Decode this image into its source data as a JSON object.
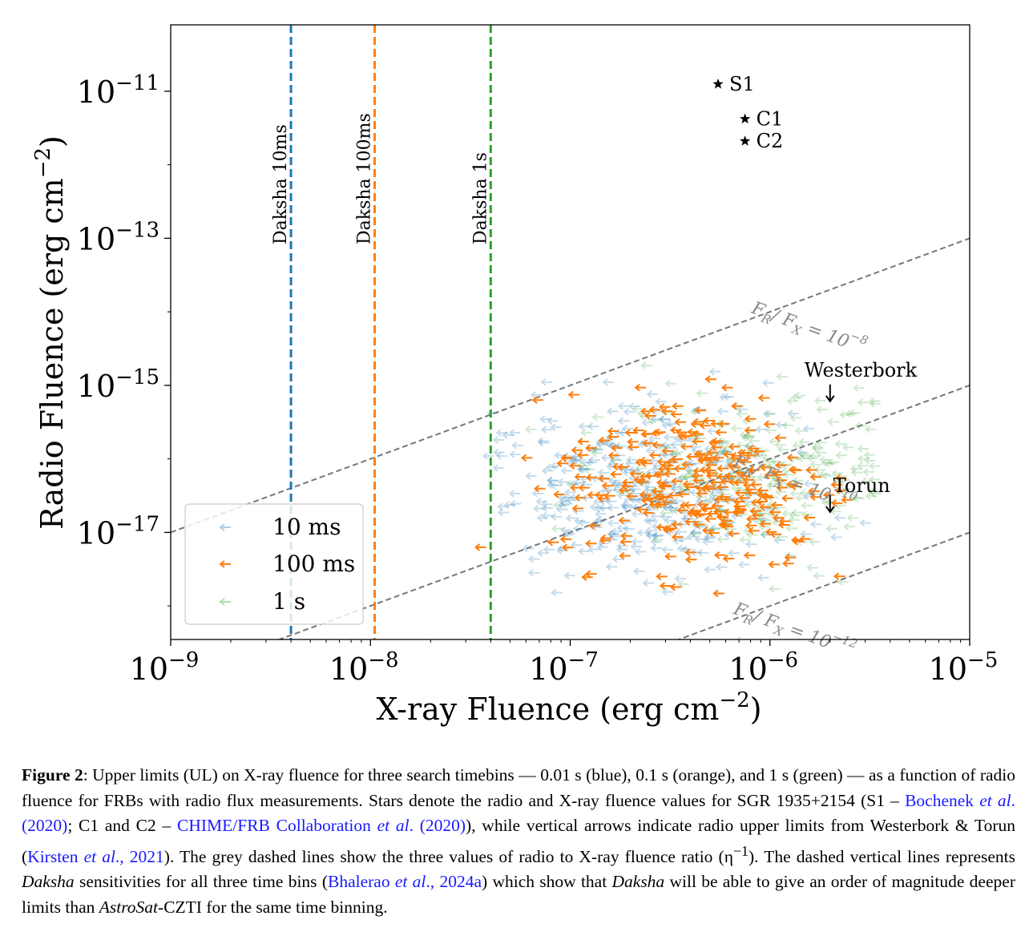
{
  "chart_data": {
    "type": "scatter",
    "xscale": "log",
    "yscale": "log",
    "xlim": [
      1e-09,
      1e-05
    ],
    "ylim": [
      3.5e-19,
      8e-11
    ],
    "xlabel": "X-ray Fluence (erg cm",
    "xlabel_sup": "−2",
    "xlabel_close": ")",
    "ylabel": "Radio Fluence (erg cm",
    "ylabel_sup": "−2",
    "ylabel_close": ")",
    "x_ticks": [
      {
        "value": 1e-09,
        "base": "10",
        "exp": "−9"
      },
      {
        "value": 1e-08,
        "base": "10",
        "exp": "−8"
      },
      {
        "value": 1e-07,
        "base": "10",
        "exp": "−7"
      },
      {
        "value": 1e-06,
        "base": "10",
        "exp": "−6"
      },
      {
        "value": 1e-05,
        "base": "10",
        "exp": "−5"
      }
    ],
    "y_ticks": [
      {
        "value": 1e-11,
        "base": "10",
        "exp": "−11"
      },
      {
        "value": 1e-13,
        "base": "10",
        "exp": "−13"
      },
      {
        "value": 1e-15,
        "base": "10",
        "exp": "−15"
      },
      {
        "value": 1e-17,
        "base": "10",
        "exp": "−17"
      }
    ],
    "vertical_lines": [
      {
        "x": 4e-09,
        "label": "Daksha 10ms",
        "color": "#1f77b4"
      },
      {
        "x": 1.05e-08,
        "label": "Daksha 100ms",
        "color": "#ff7f0e"
      },
      {
        "x": 4e-08,
        "label": "Daksha 1s",
        "color": "#2ca02c"
      }
    ],
    "ratio_lines": [
      {
        "ratio": 1e-08,
        "label_a": "F",
        "label_b": "R",
        "label_c": "/ F",
        "label_d": "X",
        "label_e": " = 10",
        "label_exp": "−8",
        "label_x": 8e-07
      },
      {
        "ratio": 1e-10,
        "label_a": "F",
        "label_b": "R",
        "label_c": "/ F",
        "label_d": "X",
        "label_e": " = 10",
        "label_exp": "−10",
        "label_x": 6.5e-07
      },
      {
        "ratio": 1e-12,
        "label_a": "F",
        "label_b": "R",
        "label_c": "/ F",
        "label_d": "X",
        "label_e": " = 10",
        "label_exp": "−12",
        "label_x": 6.5e-07
      }
    ],
    "stars": [
      {
        "name": "S1",
        "x": 5.5e-07,
        "y": 1.25e-11
      },
      {
        "name": "C1",
        "x": 7.5e-07,
        "y": 4.2e-12
      },
      {
        "name": "C2",
        "x": 7.5e-07,
        "y": 2.1e-12
      }
    ],
    "radio_limits": [
      {
        "name": "Westerbork",
        "x": 2e-06,
        "y": 8e-16
      },
      {
        "name": "Torun",
        "x": 2e-06,
        "y": 2.5e-17
      }
    ],
    "series": [
      {
        "name": "10 ms",
        "color": "#1f77b4",
        "alpha": 0.25,
        "count": 380,
        "x_log_center": -6.65,
        "x_log_sd": 0.38,
        "y_log_center": -16.45,
        "y_log_sd": 0.55
      },
      {
        "name": "100 ms",
        "color": "#ff7f0e",
        "alpha": 1.0,
        "count": 300,
        "x_log_center": -6.35,
        "x_log_sd": 0.33,
        "y_log_center": -16.3,
        "y_log_sd": 0.6
      },
      {
        "name": "1 s",
        "color": "#2ca02c",
        "alpha": 0.22,
        "count": 260,
        "x_log_center": -6.05,
        "x_log_sd": 0.38,
        "y_log_center": -16.3,
        "y_log_sd": 0.55
      }
    ],
    "legend": {
      "placement": "lower-left",
      "entries": [
        "10 ms",
        "100 ms",
        "1 s"
      ]
    }
  },
  "caption": {
    "label": "Figure 2",
    "p1": ": Upper limits (UL) on X-ray fluence for three search timebins — 0.01 s (blue), 0.1 s (orange), and 1 s (green) — as a function of radio fluence for FRBs with radio flux measurements. Stars denote the radio and X-ray fluence values for SGR 1935+2154 (S1 – ",
    "cite1a": "Bochenek ",
    "cite1b": "et al",
    "cite1c": ". (2020)",
    "p2": "; C1 and C2 – ",
    "cite2a": "CHIME/FRB Collaboration ",
    "cite2b": "et al",
    "cite2c": ". (2020)",
    "p3": "), while vertical arrows indicate radio upper limits from Westerbork & Torun (",
    "cite3a": "Kirsten ",
    "cite3b": "et al",
    "cite3c": "., 2021",
    "p4": "). The grey dashed lines show the three values of radio to X-ray fluence ratio (η",
    "p4sup": "−1",
    "p5": "). The dashed vertical lines represents ",
    "em1": "Daksha",
    "p6": " sensitivities for all three time bins (",
    "cite4a": "Bhalerao ",
    "cite4b": "et al",
    "cite4c": "., 2024a",
    "p7": ") which show that ",
    "em2": "Daksha",
    "p8": " will be able to give an order of magnitude deeper limits than ",
    "em3": "AstroSat",
    "p9": "-CZTI for the same time binning."
  }
}
